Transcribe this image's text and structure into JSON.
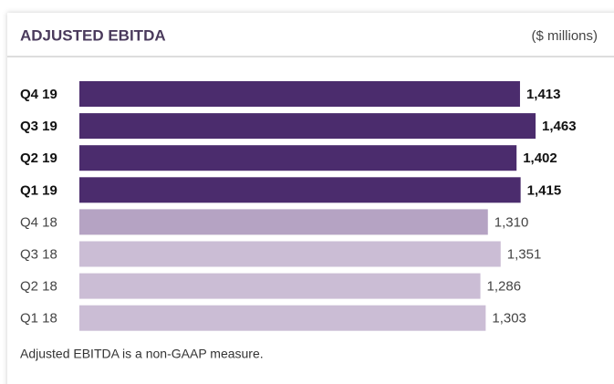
{
  "chart_data": {
    "type": "bar",
    "orientation": "horizontal",
    "title": "ADJUSTED EBITDA",
    "subtitle": "($ millions)",
    "categories": [
      "Q4 19",
      "Q3 19",
      "Q2 19",
      "Q1 19",
      "Q4 18",
      "Q3 18",
      "Q2 18",
      "Q1 18"
    ],
    "values": [
      1413,
      1463,
      1402,
      1415,
      1310,
      1351,
      1286,
      1303
    ],
    "value_labels": [
      "1,413",
      "1,463",
      "1,402",
      "1,415",
      "1,310",
      "1,351",
      "1,286",
      "1,303"
    ],
    "colors": [
      "#4b2c6d",
      "#4b2c6d",
      "#4b2c6d",
      "#4b2c6d",
      "#b5a3c3",
      "#cbbdd5",
      "#cbbdd5",
      "#cbbdd5"
    ],
    "highlight": [
      true,
      true,
      true,
      true,
      false,
      false,
      false,
      false
    ],
    "footnote": "Adjusted EBITDA is a non-GAAP measure."
  }
}
